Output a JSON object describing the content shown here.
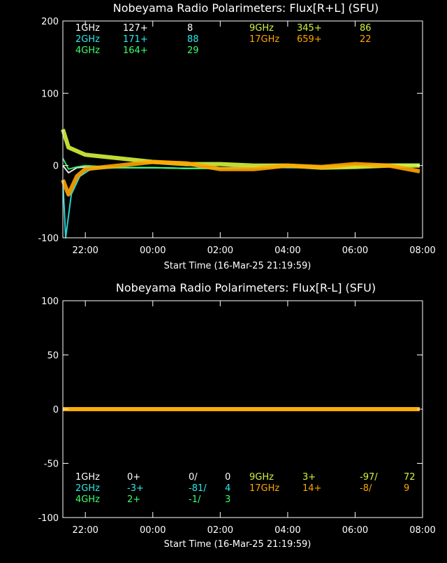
{
  "colors": {
    "1GHz": "#ffffff",
    "2GHz": "#2ee8e8",
    "4GHz": "#3cff6a",
    "9GHz": "#d6f23c",
    "17GHz": "#ffa500",
    "axis": "#ffffff"
  },
  "x_ticks": [
    "22:00",
    "00:00",
    "02:00",
    "04:00",
    "06:00",
    "08:00"
  ],
  "chart_data": [
    {
      "type": "line",
      "title": "Nobeyama Radio Polarimeters: Flux[R+L] (SFU)",
      "xlabel": "Start Time (16-Mar-25 21:19:59)",
      "ylim": [
        -100,
        200
      ],
      "y_ticks": [
        "200",
        "100",
        "0",
        "-100"
      ],
      "legend": [
        {
          "freq": "1GHz",
          "base": "127+",
          "val": "8"
        },
        {
          "freq": "2GHz",
          "base": "171+",
          "val": "88"
        },
        {
          "freq": "4GHz",
          "base": "164+",
          "val": "29"
        },
        {
          "freq": "9GHz",
          "base": "345+",
          "val": "86"
        },
        {
          "freq": "17GHz",
          "base": "659+",
          "val": "22"
        }
      ],
      "series": [
        {
          "name": "1GHz",
          "x": [
            "21:20",
            "21:30",
            "21:45",
            "22:00",
            "23:00",
            "00:00",
            "01:00",
            "02:00",
            "03:00",
            "04:00",
            "05:00",
            "06:00",
            "07:00",
            "07:55"
          ],
          "y": [
            0,
            -10,
            -3,
            -2,
            -3,
            -3,
            -4,
            -4,
            -3,
            -2,
            -2,
            0,
            0,
            0
          ]
        },
        {
          "name": "2GHz",
          "x": [
            "21:20",
            "21:25",
            "21:35",
            "21:50",
            "22:10",
            "23:00",
            "00:00",
            "01:00",
            "02:00",
            "03:00",
            "04:00",
            "05:00",
            "06:00",
            "07:00",
            "07:55"
          ],
          "y": [
            -20,
            -100,
            -40,
            -15,
            -5,
            -3,
            -3,
            -4,
            -3,
            -2,
            -3,
            -3,
            0,
            2,
            2
          ]
        },
        {
          "name": "4GHz",
          "x": [
            "21:20",
            "21:30",
            "21:45",
            "22:00",
            "23:00",
            "00:00",
            "01:00",
            "02:00",
            "03:00",
            "04:00",
            "05:00",
            "06:00",
            "07:00",
            "07:55"
          ],
          "y": [
            10,
            -5,
            -2,
            0,
            -3,
            -3,
            -4,
            -4,
            -3,
            -2,
            -3,
            -2,
            0,
            0
          ]
        },
        {
          "name": "9GHz",
          "x": [
            "21:20",
            "21:30",
            "21:45",
            "22:00",
            "23:00",
            "00:00",
            "01:00",
            "02:00",
            "03:00",
            "04:00",
            "05:00",
            "06:00",
            "07:00",
            "07:55"
          ],
          "y": [
            50,
            25,
            20,
            15,
            10,
            5,
            2,
            2,
            0,
            0,
            -3,
            -2,
            0,
            0
          ]
        },
        {
          "name": "17GHz",
          "x": [
            "21:20",
            "21:30",
            "21:45",
            "22:00",
            "23:00",
            "00:00",
            "01:00",
            "02:00",
            "03:00",
            "04:00",
            "05:00",
            "06:00",
            "07:00",
            "07:55"
          ],
          "y": [
            -20,
            -40,
            -15,
            -5,
            0,
            5,
            3,
            -5,
            -5,
            0,
            -2,
            2,
            0,
            -8
          ]
        }
      ]
    },
    {
      "type": "line",
      "title": "Nobeyama Radio Polarimeters: Flux[R-L] (SFU)",
      "xlabel": "Start Time (16-Mar-25 21:19:59)",
      "ylim": [
        -100,
        100
      ],
      "y_ticks": [
        "100",
        "50",
        "0",
        "-50",
        "-100"
      ],
      "legend": [
        {
          "freq": "1GHz",
          "base": "0+",
          "val": "0/",
          "val2": "0"
        },
        {
          "freq": "2GHz",
          "base": "-3+",
          "val": "-81/",
          "val2": "4"
        },
        {
          "freq": "4GHz",
          "base": "2+",
          "val": "-1/",
          "val2": "3"
        },
        {
          "freq": "9GHz",
          "base": "3+",
          "val": "-97/",
          "val2": "72"
        },
        {
          "freq": "17GHz",
          "base": "14+",
          "val": "-8/",
          "val2": "9"
        }
      ],
      "series": [
        {
          "name": "1GHz",
          "x": [
            "21:20",
            "07:55"
          ],
          "y": [
            0,
            0
          ]
        },
        {
          "name": "2GHz",
          "x": [
            "21:20",
            "02:30",
            "07:55"
          ],
          "y": [
            0,
            0,
            0
          ]
        },
        {
          "name": "4GHz",
          "x": [
            "21:20",
            "07:55"
          ],
          "y": [
            0,
            0
          ]
        },
        {
          "name": "9GHz",
          "x": [
            "21:20",
            "07:55"
          ],
          "y": [
            0,
            0
          ]
        },
        {
          "name": "17GHz",
          "x": [
            "21:20",
            "07:55"
          ],
          "y": [
            0,
            0
          ]
        }
      ]
    }
  ]
}
